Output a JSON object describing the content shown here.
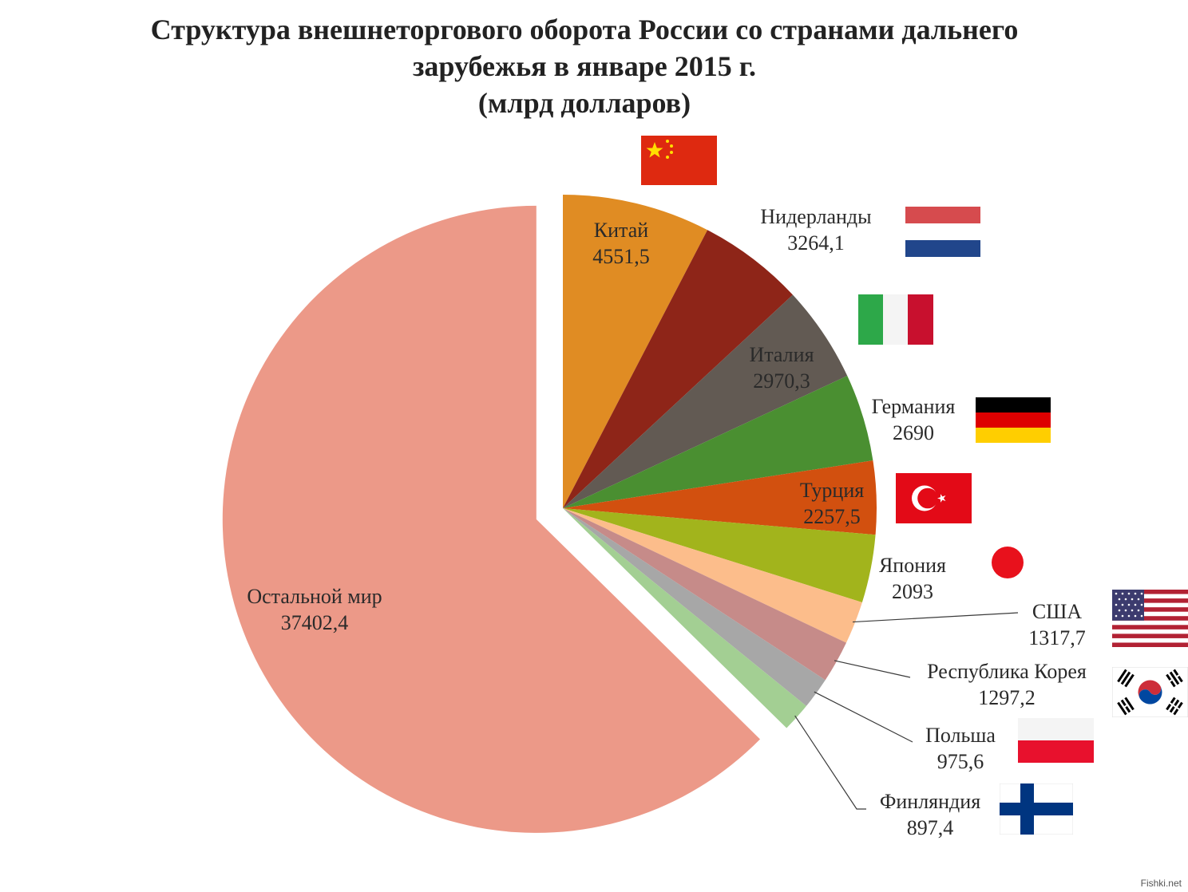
{
  "title_lines": [
    "Структура внешнеторгового оборота России со странами дальнего",
    "зарубежья в январе 2015 г.",
    "(млрд долларов)"
  ],
  "watermark": "Fishki.net",
  "chart_data": {
    "type": "pie",
    "title": "Структура внешнеторгового оборота России со странами дальнего зарубежья в январе 2015 г. (млрд долларов)",
    "slices": [
      {
        "label": "Китай",
        "value_label": "4551,5",
        "value": 4551.5,
        "color": "#E08C23",
        "flag": "china-flag"
      },
      {
        "label": "",
        "value_label": "",
        "value": 3264.1,
        "color": "#8E2518"
      },
      {
        "label": "Италия",
        "value_label": "2970,3",
        "value": 2970.3,
        "color": "#625A53",
        "flag": "italy-flag"
      },
      {
        "label": "Германия",
        "value_label": "2690",
        "value": 2690,
        "color": "#4A8F31",
        "flag": "germany-flag"
      },
      {
        "label": "Турция",
        "value_label": "2257,5",
        "value": 2257.5,
        "color": "#D2500F",
        "flag": "turkey-flag"
      },
      {
        "label": "Япония",
        "value_label": "2093",
        "value": 2093,
        "color": "#A2B41C",
        "flag": "japan-flag"
      },
      {
        "label": "США",
        "value_label": "1317,7",
        "value": 1317.7,
        "color": "#FCBD8B",
        "flag": "usa-flag"
      },
      {
        "label": "Республика Корея",
        "value_label": "1297,2",
        "value": 1297.2,
        "color": "#C68B89",
        "flag": "korea-flag"
      },
      {
        "label": "Польша",
        "value_label": "975,6",
        "value": 975.6,
        "color": "#A7A7A7",
        "flag": "poland-flag"
      },
      {
        "label": "Финляндия",
        "value_label": "897,4",
        "value": 897.4,
        "color": "#A3CF93",
        "flag": "finland-flag"
      },
      {
        "label": "Остальной мир",
        "value_label": "37402,4",
        "value": 37402.4,
        "color": "#EC9988"
      }
    ],
    "extra_labels": [
      {
        "label": "Нидерланды",
        "value_label": "3264,1",
        "flag": "netherlands-flag"
      }
    ],
    "exploded_slice": "Остальной мир",
    "legend": "none"
  }
}
